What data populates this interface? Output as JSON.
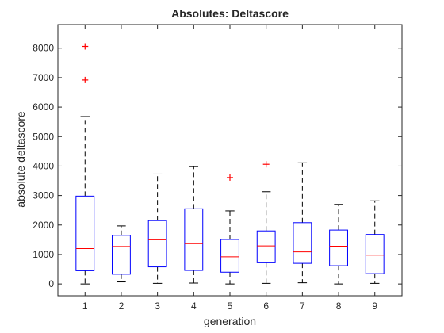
{
  "chart_data": {
    "type": "boxplot",
    "title": "Absolutes: Deltascore",
    "xlabel": "generation",
    "ylabel": "absolute deltascore",
    "categories": [
      "1",
      "2",
      "3",
      "4",
      "5",
      "6",
      "7",
      "8",
      "9"
    ],
    "ylim": [
      -400,
      8800
    ],
    "yticks": [
      0,
      1000,
      2000,
      3000,
      4000,
      5000,
      6000,
      7000,
      8000
    ],
    "grid": false,
    "boxes": [
      {
        "category": "1",
        "whisker_low": 0,
        "q1": 450,
        "median": 1200,
        "q3": 2980,
        "whisker_high": 5680,
        "outliers": [
          6920,
          8060
        ]
      },
      {
        "category": "2",
        "whisker_low": 70,
        "q1": 330,
        "median": 1270,
        "q3": 1650,
        "whisker_high": 1970,
        "outliers": []
      },
      {
        "category": "3",
        "whisker_low": 20,
        "q1": 580,
        "median": 1500,
        "q3": 2150,
        "whisker_high": 3730,
        "outliers": []
      },
      {
        "category": "4",
        "whisker_low": 30,
        "q1": 460,
        "median": 1370,
        "q3": 2550,
        "whisker_high": 3980,
        "outliers": []
      },
      {
        "category": "5",
        "whisker_low": 0,
        "q1": 400,
        "median": 920,
        "q3": 1510,
        "whisker_high": 2480,
        "outliers": [
          3610
        ]
      },
      {
        "category": "6",
        "whisker_low": 20,
        "q1": 720,
        "median": 1290,
        "q3": 1800,
        "whisker_high": 3130,
        "outliers": [
          4060
        ]
      },
      {
        "category": "7",
        "whisker_low": 40,
        "q1": 700,
        "median": 1090,
        "q3": 2080,
        "whisker_high": 4110,
        "outliers": []
      },
      {
        "category": "8",
        "whisker_low": 0,
        "q1": 620,
        "median": 1280,
        "q3": 1830,
        "whisker_high": 2700,
        "outliers": []
      },
      {
        "category": "9",
        "whisker_low": 20,
        "q1": 350,
        "median": 980,
        "q3": 1680,
        "whisker_high": 2820,
        "outliers": []
      }
    ],
    "colors": {
      "box": "#0000ff",
      "median": "#ff0000",
      "whisker": "#000000",
      "outlier": "#ff0000",
      "axis": "#262626"
    }
  }
}
